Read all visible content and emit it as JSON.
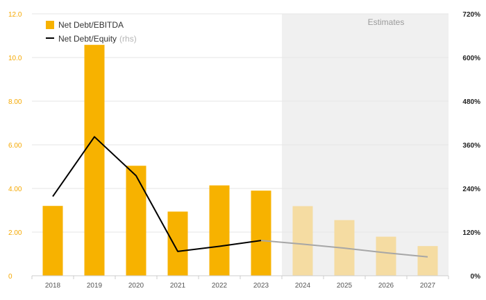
{
  "chart_data": {
    "type": "bar",
    "categories": [
      "2018",
      "2019",
      "2020",
      "2021",
      "2022",
      "2023",
      "2024",
      "2025",
      "2026",
      "2027"
    ],
    "series": [
      {
        "name": "Net Debt/EBITDA",
        "type": "bar",
        "axis": "left",
        "values": [
          3.2,
          10.58,
          5.04,
          2.94,
          4.14,
          3.9,
          3.19,
          2.55,
          1.79,
          1.36
        ]
      },
      {
        "name": "Net Debt/Equity",
        "name_suffix": "(rhs)",
        "type": "line",
        "axis": "right",
        "values": [
          218,
          382,
          275,
          67,
          81,
          97,
          87,
          76,
          63,
          52
        ]
      }
    ],
    "estimates_from": "2024",
    "estimates_label": "Estimates",
    "y_left": {
      "lim": [
        0,
        12
      ],
      "ticks": [
        0,
        2,
        4,
        6,
        8,
        10,
        12
      ],
      "tick_labels": [
        "0",
        "2.00",
        "4.00",
        "6.00",
        "8.00",
        "10.0",
        "12.0"
      ]
    },
    "y_right": {
      "lim": [
        0,
        720
      ],
      "ticks": [
        0,
        120,
        240,
        360,
        480,
        600,
        720
      ],
      "tick_labels": [
        "0%",
        "120%",
        "240%",
        "360%",
        "480%",
        "600%",
        "720%"
      ]
    },
    "legend_position": "top-left",
    "grid": true,
    "colors": {
      "bar": "#f7b200",
      "bar_estimate": "#f5dca2",
      "line": "#000000",
      "line_estimate": "#a6a6a6",
      "estimate_region": "#f0f0f0",
      "grid": "#e6e6e6",
      "left_axis": "#f5a800",
      "right_axis": "#222222"
    }
  }
}
